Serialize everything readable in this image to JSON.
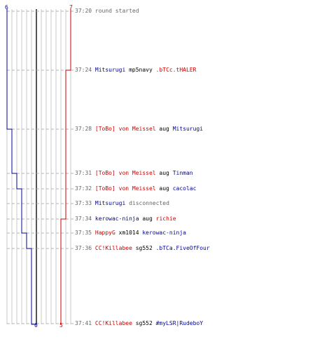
{
  "colors": {
    "red_team": "#cc0000",
    "blue_team": "#000099",
    "grid": "#c8c8c8",
    "dash": "#b4b4b4",
    "center": "#555555",
    "text_gray": "#666666"
  },
  "labels": {
    "blue_top": "6",
    "red_top": "7",
    "blue_bottom": "0",
    "red_bottom": "5"
  },
  "blue_players_remaining": [
    6,
    5,
    4,
    3,
    2,
    1,
    0
  ],
  "red_players_remaining": [
    7,
    6,
    5
  ],
  "events": [
    {
      "time": "37:20",
      "parts": [
        {
          "text": "round started",
          "team": "gray"
        }
      ]
    },
    {
      "time": "37:24",
      "parts": [
        {
          "text": "Mitsurugi",
          "team": "blue"
        },
        {
          "text": " mp5navy ",
          "team": "black"
        },
        {
          "text": ".bTCc.tHALER",
          "team": "red"
        }
      ]
    },
    {
      "time": "37:28",
      "parts": [
        {
          "text": "[ToBo] von Meissel",
          "team": "red"
        },
        {
          "text": " aug ",
          "team": "black"
        },
        {
          "text": "Mitsurugi",
          "team": "blue"
        }
      ]
    },
    {
      "time": "37:31",
      "parts": [
        {
          "text": "[ToBo] von Meissel",
          "team": "red"
        },
        {
          "text": " aug ",
          "team": "black"
        },
        {
          "text": "Tinman",
          "team": "blue"
        }
      ]
    },
    {
      "time": "37:32",
      "parts": [
        {
          "text": "[ToBo] von Meissel",
          "team": "red"
        },
        {
          "text": " aug ",
          "team": "black"
        },
        {
          "text": "cacolac",
          "team": "blue"
        }
      ]
    },
    {
      "time": "37:33",
      "parts": [
        {
          "text": "Mitsurugi",
          "team": "blue"
        },
        {
          "text": " disconnected",
          "team": "gray"
        }
      ]
    },
    {
      "time": "37:34",
      "parts": [
        {
          "text": "kerowac-ninja",
          "team": "blue"
        },
        {
          "text": " aug ",
          "team": "black"
        },
        {
          "text": "richie",
          "team": "red"
        }
      ]
    },
    {
      "time": "37:35",
      "parts": [
        {
          "text": "HappyG",
          "team": "red"
        },
        {
          "text": " xm1014 ",
          "team": "black"
        },
        {
          "text": "kerowac-ninja",
          "team": "blue"
        }
      ]
    },
    {
      "time": "37:36",
      "parts": [
        {
          "text": "CC!Killabee",
          "team": "red"
        },
        {
          "text": " sg552 ",
          "team": "black"
        },
        {
          "text": ".bTCa.FiveOfFour",
          "team": "blue"
        }
      ]
    },
    {
      "time": "37:41",
      "parts": [
        {
          "text": "CC!Killabee",
          "team": "red"
        },
        {
          "text": " sg552 ",
          "team": "black"
        },
        {
          "text": "#myLSR|RudeboY",
          "team": "blue"
        }
      ]
    }
  ]
}
